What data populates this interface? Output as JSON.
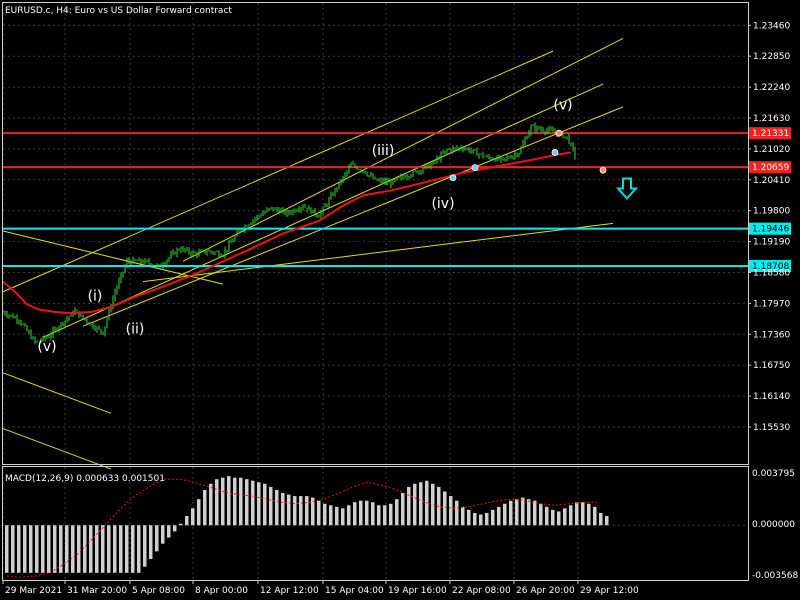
{
  "header": {
    "title": "EURUSD.c, H4:  Euro vs US Dollar Forward contract"
  },
  "macd": {
    "label": "MACD(12,26,9) 0.000633 0.001501",
    "ticks": [
      "0.003795",
      "0.000000",
      "-0.003568"
    ]
  },
  "colors": {
    "background": "#000000",
    "grid": "#3a3a3a",
    "up_candle": "#33dd33",
    "ma": "#ee1111",
    "channel": "#dddd22",
    "support": "#00eeee",
    "resistance": "#ee2222",
    "arrow": "#00dddd"
  },
  "chart_data": [
    {
      "type": "candlestick",
      "title": "EURUSD.c, H4:  Euro vs US Dollar Forward contract",
      "ylim": [
        1.148,
        1.239
      ],
      "yticks": [
        "1.23460",
        "1.22850",
        "1.22240",
        "1.21630",
        "1.21020",
        "1.20410",
        "1.19800",
        "1.19190",
        "1.18580",
        "1.17970",
        "1.17360",
        "1.16750",
        "1.16140",
        "1.15530"
      ],
      "xticks": [
        "29 Mar 2021",
        "31 Mar 20:00",
        "5 Apr 08:00",
        "8 Apr 00:00",
        "12 Apr 12:00",
        "15 Apr 04:00",
        "19 Apr 16:00",
        "22 Apr 08:00",
        "26 Apr 20:00",
        "29 Apr 12:00"
      ],
      "close_path": [
        [
          0,
          1.178
        ],
        [
          8,
          1.1765
        ],
        [
          16,
          1.172
        ],
        [
          22,
          1.173
        ],
        [
          30,
          1.176
        ],
        [
          36,
          1.1782
        ],
        [
          44,
          1.1755
        ],
        [
          50,
          1.174
        ],
        [
          56,
          1.182
        ],
        [
          62,
          1.188
        ],
        [
          70,
          1.188
        ],
        [
          78,
          1.187
        ],
        [
          88,
          1.1905
        ],
        [
          96,
          1.1895
        ],
        [
          102,
          1.19
        ],
        [
          110,
          1.1895
        ],
        [
          118,
          1.194
        ],
        [
          126,
          1.1965
        ],
        [
          134,
          1.1985
        ],
        [
          142,
          1.1975
        ],
        [
          150,
          1.199
        ],
        [
          158,
          1.197
        ],
        [
          166,
          1.202
        ],
        [
          174,
          1.207
        ],
        [
          180,
          1.206
        ],
        [
          186,
          1.204
        ],
        [
          194,
          1.2035
        ],
        [
          202,
          1.205
        ],
        [
          208,
          1.206
        ],
        [
          214,
          1.207
        ],
        [
          222,
          1.21
        ],
        [
          230,
          1.2105
        ],
        [
          236,
          1.2095
        ],
        [
          242,
          1.2085
        ],
        [
          250,
          1.208
        ],
        [
          258,
          1.2095
        ],
        [
          264,
          1.2145
        ],
        [
          270,
          1.214
        ],
        [
          276,
          1.2135
        ],
        [
          282,
          1.2125
        ],
        [
          286,
          1.209
        ]
      ],
      "moving_average": [
        [
          0,
          1.184
        ],
        [
          6,
          1.182
        ],
        [
          12,
          1.1795
        ],
        [
          18,
          1.1785
        ],
        [
          26,
          1.178
        ],
        [
          34,
          1.1778
        ],
        [
          44,
          1.178
        ],
        [
          54,
          1.179
        ],
        [
          66,
          1.181
        ],
        [
          80,
          1.183
        ],
        [
          96,
          1.1855
        ],
        [
          110,
          1.188
        ],
        [
          124,
          1.1905
        ],
        [
          140,
          1.1935
        ],
        [
          158,
          1.196
        ],
        [
          170,
          1.199
        ],
        [
          180,
          1.201
        ],
        [
          194,
          1.202
        ],
        [
          210,
          1.2035
        ],
        [
          230,
          1.2055
        ],
        [
          250,
          1.207
        ],
        [
          264,
          1.208
        ],
        [
          276,
          1.209
        ],
        [
          284,
          1.2095
        ]
      ],
      "horizontal_levels": [
        {
          "price": 1.21331,
          "label": "1.21331",
          "kind": "resistance"
        },
        {
          "price": 1.20659,
          "label": "1.20659",
          "kind": "resistance"
        },
        {
          "price": 1.19446,
          "label": "1.19446",
          "kind": "support"
        },
        {
          "price": 1.18708,
          "label": "1.18708",
          "kind": "support"
        }
      ],
      "trend_lines": [
        [
          [
            0,
            1.194
          ],
          [
            110,
            1.1835
          ]
        ],
        [
          [
            0,
            1.166
          ],
          [
            54,
            1.158
          ]
        ],
        [
          [
            0,
            1.155
          ],
          [
            54,
            1.147
          ]
        ],
        [
          [
            0,
            1.182
          ],
          [
            275,
            1.2295
          ]
        ],
        [
          [
            20,
            1.173
          ],
          [
            300,
            1.223
          ]
        ],
        [
          [
            40,
            1.1752
          ],
          [
            310,
            1.2185
          ]
        ],
        [
          [
            70,
            1.184
          ],
          [
            305,
            1.1955
          ]
        ],
        [
          [
            90,
            1.188
          ],
          [
            310,
            1.232
          ]
        ]
      ],
      "wave_labels": [
        {
          "text": "(v)",
          "bar": 22,
          "price": 1.1703
        },
        {
          "text": "(i)",
          "bar": 46,
          "price": 1.1803
        },
        {
          "text": "(ii)",
          "bar": 66,
          "price": 1.1738
        },
        {
          "text": "(iii)",
          "bar": 190,
          "price": 1.209
        },
        {
          "text": "(iv)",
          "bar": 220,
          "price": 1.1985
        },
        {
          "text": "(v)",
          "bar": 280,
          "price": 1.218
        }
      ],
      "markers": [
        {
          "bar": 225,
          "price": 1.2045,
          "kind": "up"
        },
        {
          "bar": 236,
          "price": 1.2065,
          "kind": "up"
        },
        {
          "bar": 278,
          "price": 1.2133,
          "kind": "down"
        },
        {
          "bar": 276,
          "price": 1.2095,
          "kind": "up"
        },
        {
          "bar": 300,
          "price": 1.206,
          "kind": "down"
        }
      ],
      "signal_arrow": {
        "bar": 312,
        "price": 1.202,
        "direction": "down"
      }
    },
    {
      "type": "histogram",
      "title": "MACD(12,26,9) 0.000633 0.001501",
      "ylim": [
        -0.003568,
        0.003795
      ],
      "values": [
        -0.0031,
        -0.0031,
        -0.0031,
        -0.0031,
        -0.0031,
        -0.0031,
        -0.0031,
        -0.0031,
        -0.0031,
        -0.0031,
        -0.0031,
        -0.0031,
        -0.0031,
        -0.0031,
        -0.0031,
        -0.0031,
        -0.0031,
        -0.0031,
        -0.0031,
        -0.0031,
        -0.0031,
        -0.0031,
        -0.0031,
        -0.0027,
        -0.0022,
        -0.0017,
        -0.0012,
        -0.0008,
        -0.0004,
        0.0001,
        0.0006,
        0.0011,
        0.0017,
        0.0023,
        0.0027,
        0.003,
        0.0031,
        0.0032,
        0.0031,
        0.0031,
        0.003,
        0.0029,
        0.0028,
        0.0027,
        0.0025,
        0.0023,
        0.0021,
        0.002,
        0.0019,
        0.0019,
        0.0019,
        0.0018,
        0.0016,
        0.0014,
        0.0013,
        0.0012,
        0.0011,
        0.0013,
        0.0015,
        0.0016,
        0.0016,
        0.0015,
        0.0013,
        0.0013,
        0.0014,
        0.0017,
        0.0021,
        0.0025,
        0.0027,
        0.0028,
        0.0029,
        0.0027,
        0.0025,
        0.0022,
        0.0019,
        0.0016,
        0.0012,
        0.001,
        0.0008,
        0.0007,
        0.0008,
        0.001,
        0.0012,
        0.0014,
        0.0016,
        0.0017,
        0.0018,
        0.0017,
        0.0016,
        0.0014,
        0.0012,
        0.001,
        0.0009,
        0.0011,
        0.0013,
        0.0015,
        0.0015,
        0.0014,
        0.0012,
        0.0008,
        0.0006
      ],
      "signal": [
        -0.0033,
        -0.0034,
        -0.0033,
        -0.0031,
        -0.0025,
        -0.0018,
        -0.0008,
        0.0002,
        0.0012,
        0.002,
        0.0026,
        0.003,
        0.003,
        0.0028,
        0.0025,
        0.0022,
        0.002,
        0.0019,
        0.0017,
        0.0015,
        0.0014,
        0.0015,
        0.0017,
        0.0021,
        0.0025,
        0.0028,
        0.0026,
        0.0023,
        0.0019,
        0.0015,
        0.0012,
        0.0011,
        0.0012,
        0.0014,
        0.0016,
        0.0017,
        0.0016,
        0.0014,
        0.0013,
        0.0014,
        0.0015,
        0.0015
      ]
    }
  ]
}
